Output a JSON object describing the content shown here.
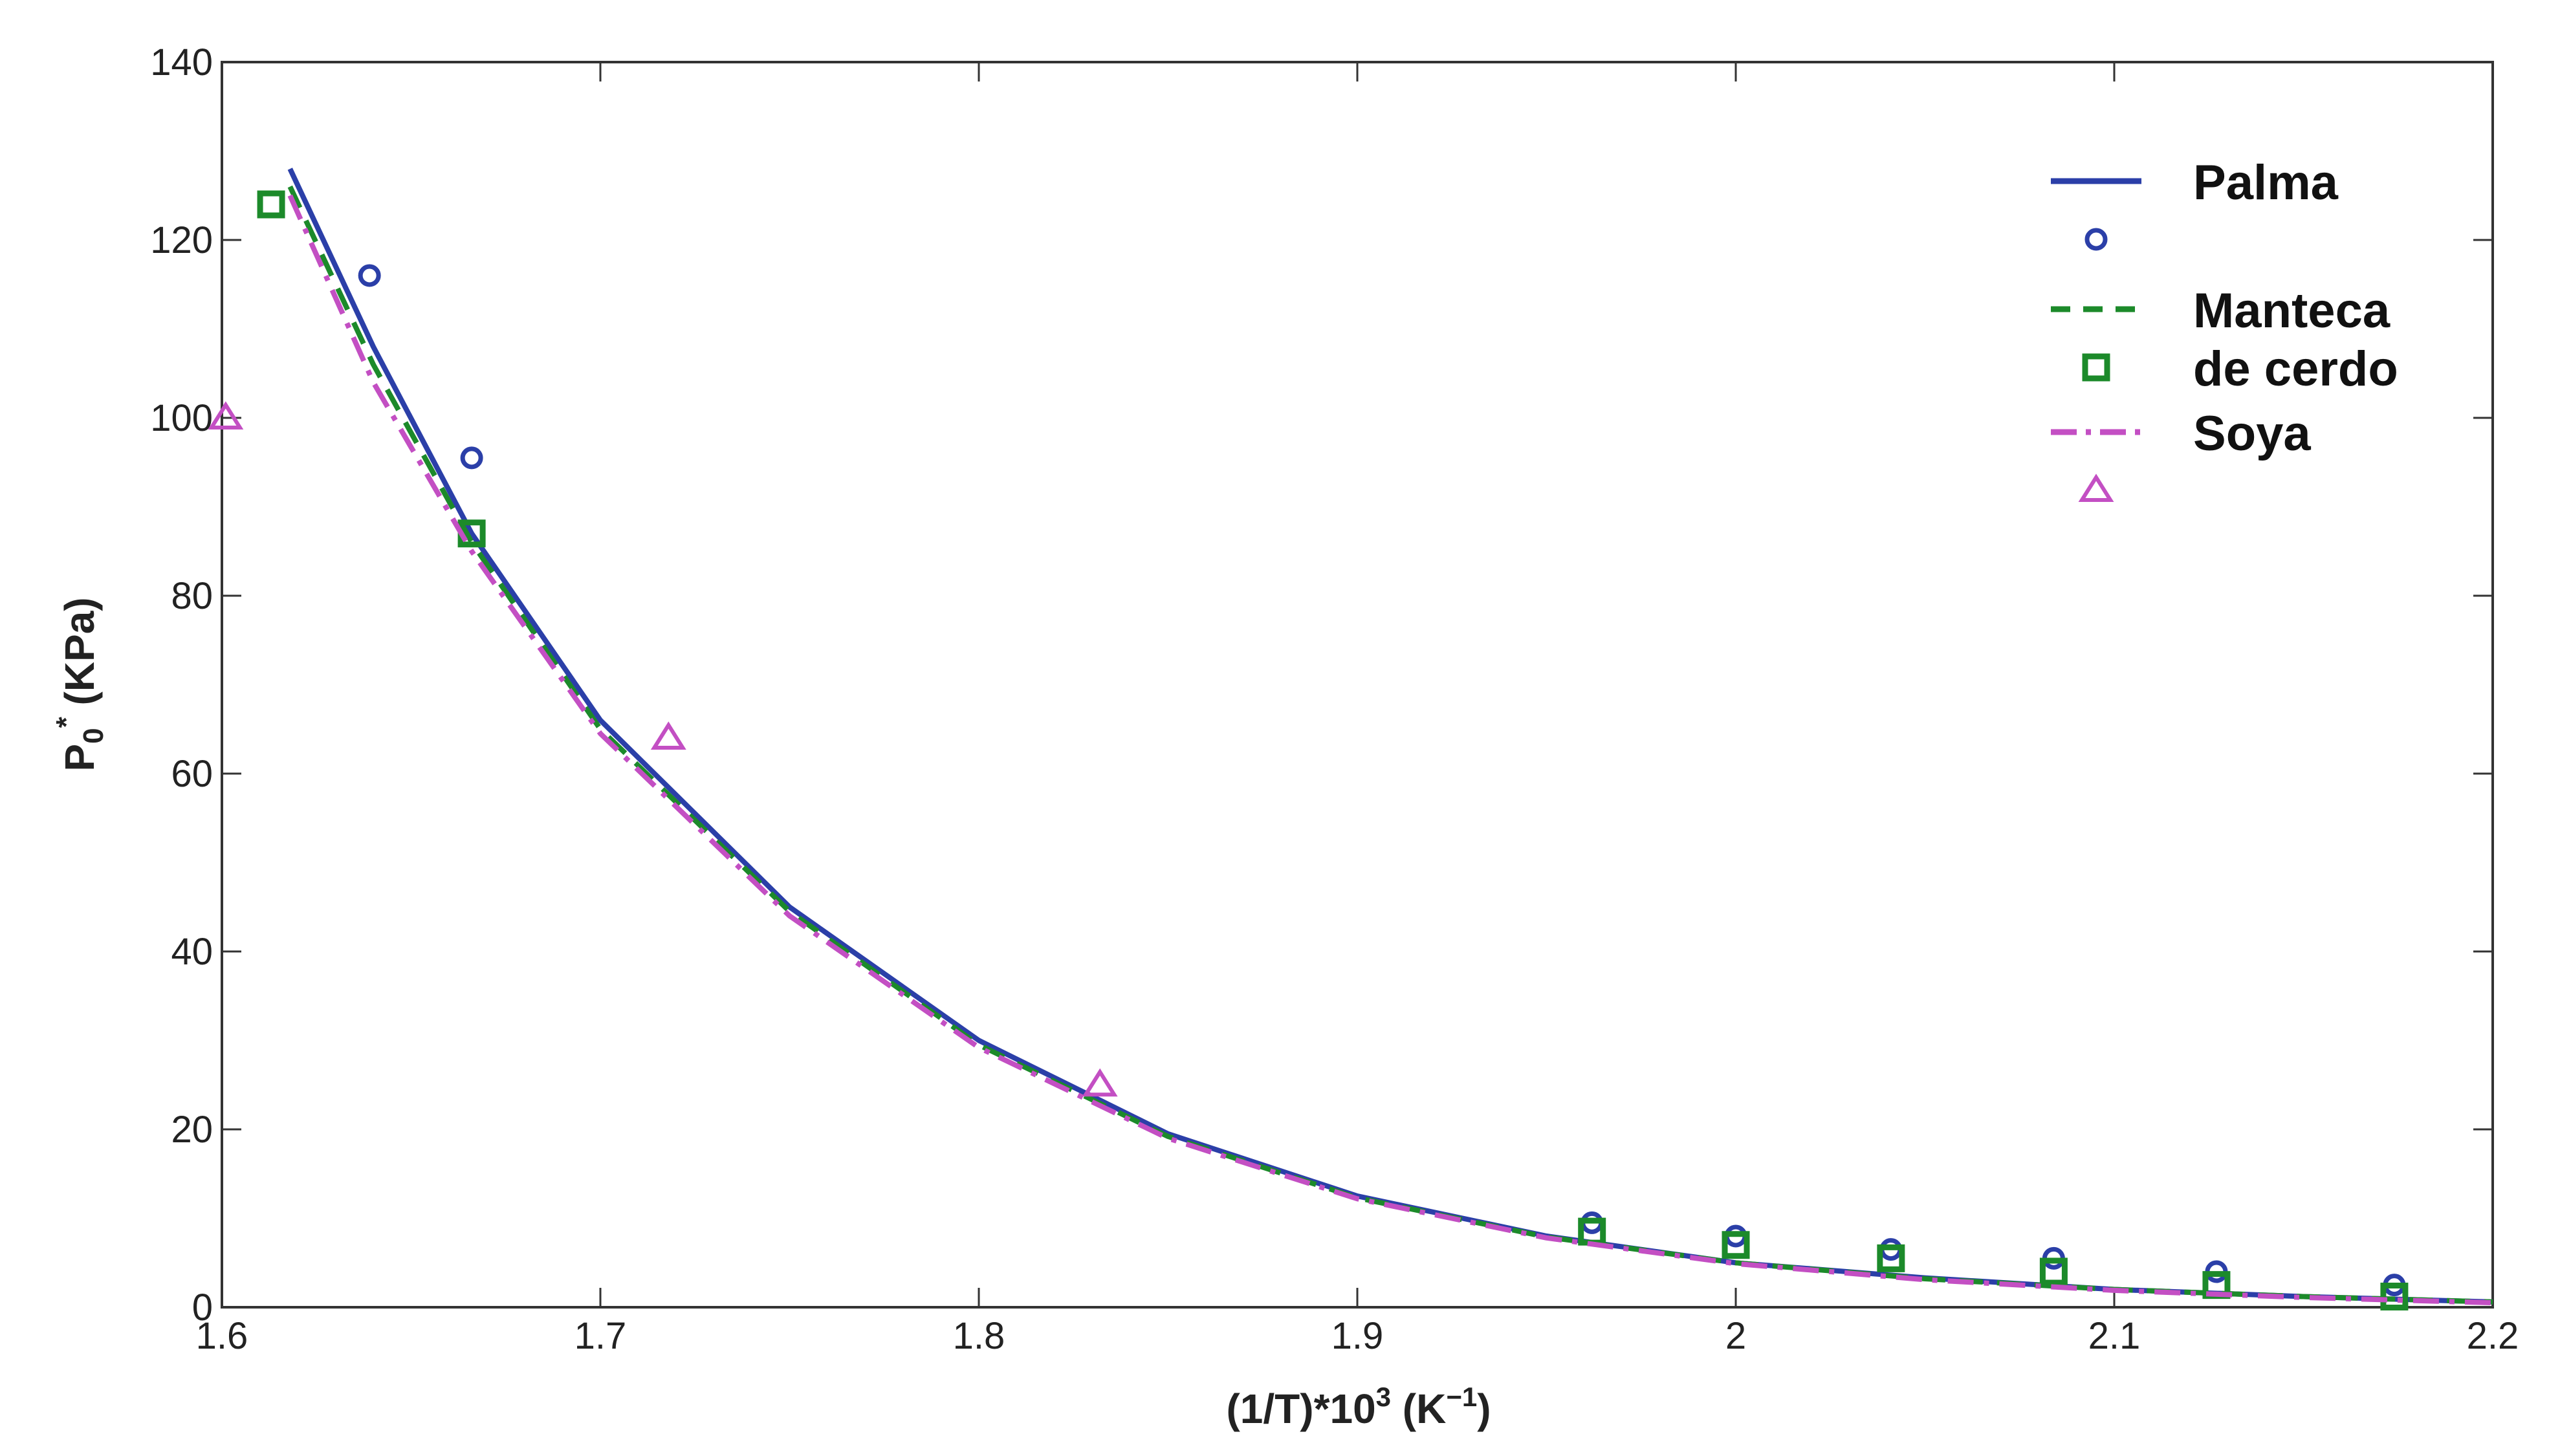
{
  "chart_data": {
    "type": "line",
    "xlabel": {
      "main": "(1/T)*10",
      "sup1": "3",
      "mid": " (K",
      "sup2": "−1",
      "end": ")"
    },
    "ylabel": {
      "main": "P",
      "sub": "0",
      "sup": "*",
      "end": " (KPa)"
    },
    "xlim": [
      1.6,
      2.2
    ],
    "ylim": [
      0,
      140
    ],
    "xticks": [
      1.6,
      1.7,
      1.8,
      1.9,
      2,
      2.1,
      2.2
    ],
    "yticks": [
      0,
      20,
      40,
      60,
      80,
      100,
      120,
      140
    ],
    "xtick_labels": [
      "1.6",
      "1.7",
      "1.8",
      "1.9",
      "2",
      "2.1",
      "2.2"
    ],
    "ytick_labels": [
      "0",
      "20",
      "40",
      "60",
      "80",
      "100",
      "120",
      "140"
    ],
    "grid": false,
    "legend_position": "top-right",
    "series": [
      {
        "name": "Palma",
        "style": "solid",
        "color": "#2b3fa8",
        "x": [
          1.618,
          1.64,
          1.666,
          1.7,
          1.75,
          1.8,
          1.85,
          1.9,
          1.95,
          2.0,
          2.05,
          2.1,
          2.15,
          2.2
        ],
        "y": [
          128,
          108,
          87,
          66,
          45,
          30,
          19.5,
          12.5,
          8,
          5,
          3.3,
          2,
          1.2,
          0.6
        ]
      },
      {
        "name": "Palma",
        "style": "circle",
        "color": "#2b3fa8",
        "x": [
          1.639,
          1.666,
          1.962,
          2.0,
          2.041,
          2.084,
          2.127,
          2.174
        ],
        "y": [
          116,
          95.5,
          9.5,
          8,
          6.5,
          5.5,
          4,
          2.5
        ]
      },
      {
        "name": "Manteca de cerdo",
        "style": "dashed",
        "color": "#1c8a2a",
        "x": [
          1.618,
          1.64,
          1.666,
          1.7,
          1.75,
          1.8,
          1.85,
          1.9,
          1.95,
          2.0,
          2.05,
          2.1,
          2.15,
          2.2
        ],
        "y": [
          126,
          106,
          86,
          65,
          44.5,
          29.5,
          19.2,
          12.3,
          7.9,
          5,
          3.2,
          2,
          1.2,
          0.6
        ]
      },
      {
        "name": "Manteca de cerdo",
        "style": "square",
        "color": "#1c8a2a",
        "x": [
          1.613,
          1.666,
          1.962,
          2.0,
          2.041,
          2.084,
          2.127,
          2.174
        ],
        "y": [
          124,
          87,
          8.5,
          7,
          5.5,
          4,
          2.5,
          1.2
        ]
      },
      {
        "name": "Soya",
        "style": "dashdot",
        "color": "#c34fc3",
        "x": [
          1.618,
          1.64,
          1.666,
          1.7,
          1.75,
          1.8,
          1.85,
          1.9,
          1.95,
          2.0,
          2.05,
          2.1,
          2.15,
          2.2
        ],
        "y": [
          125,
          104,
          85,
          64.5,
          44,
          29.2,
          19,
          12.2,
          7.8,
          4.9,
          3.1,
          1.9,
          1.1,
          0.5
        ]
      },
      {
        "name": "Soya",
        "style": "triangle",
        "color": "#c34fc3",
        "x": [
          1.601,
          1.718,
          1.832
        ],
        "y": [
          100,
          64,
          25
        ]
      }
    ],
    "legend": [
      {
        "style": "solid",
        "color": "#2b3fa8",
        "label": [
          "Palma"
        ]
      },
      {
        "style": "circle",
        "color": "#2b3fa8",
        "label": []
      },
      {
        "style": "dashed",
        "color": "#1c8a2a",
        "label": [
          "Manteca"
        ]
      },
      {
        "style": "square",
        "color": "#1c8a2a",
        "label": [
          "de cerdo"
        ]
      },
      {
        "style": "dashdot",
        "color": "#c34fc3",
        "label": [
          "Soya"
        ]
      },
      {
        "style": "triangle",
        "color": "#c34fc3",
        "label": []
      }
    ]
  }
}
